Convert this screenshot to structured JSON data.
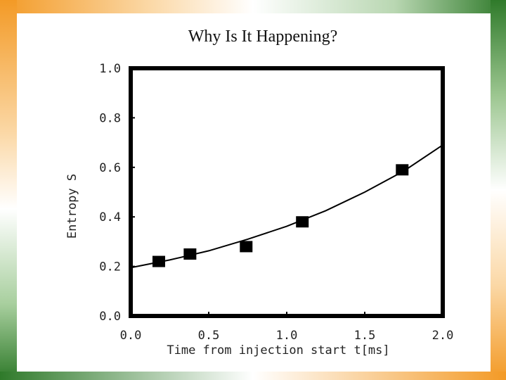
{
  "slide": {
    "title": "Why Is It Happening?"
  },
  "colors": {
    "accent_orange": "#f39a26",
    "accent_green": "#2f7a2a",
    "plot_stroke": "#000000"
  },
  "chart_data": {
    "type": "scatter",
    "title": "",
    "xlabel": "Time from injection start t[ms]",
    "ylabel": "Entropy  S",
    "xlim": [
      0,
      2.0
    ],
    "ylim": [
      0,
      1.0
    ],
    "x_ticks": [
      "0.0",
      "0.5",
      "1.0",
      "1.5",
      "2.0"
    ],
    "y_ticks": [
      "0.0",
      "0.2",
      "0.4",
      "0.6",
      "0.8",
      "1.0"
    ],
    "grid": false,
    "series": [
      {
        "marker": "square",
        "points": [
          {
            "x": 0.18,
            "y": 0.22
          },
          {
            "x": 0.38,
            "y": 0.25
          },
          {
            "x": 0.74,
            "y": 0.28
          },
          {
            "x": 1.1,
            "y": 0.38
          },
          {
            "x": 1.74,
            "y": 0.59
          }
        ]
      },
      {
        "style": "line",
        "points": [
          {
            "x": 0.0,
            "y": 0.195
          },
          {
            "x": 0.25,
            "y": 0.226
          },
          {
            "x": 0.5,
            "y": 0.263
          },
          {
            "x": 0.75,
            "y": 0.31
          },
          {
            "x": 1.0,
            "y": 0.362
          },
          {
            "x": 1.25,
            "y": 0.425
          },
          {
            "x": 1.5,
            "y": 0.5
          },
          {
            "x": 1.75,
            "y": 0.585
          },
          {
            "x": 2.0,
            "y": 0.69
          }
        ]
      }
    ]
  }
}
